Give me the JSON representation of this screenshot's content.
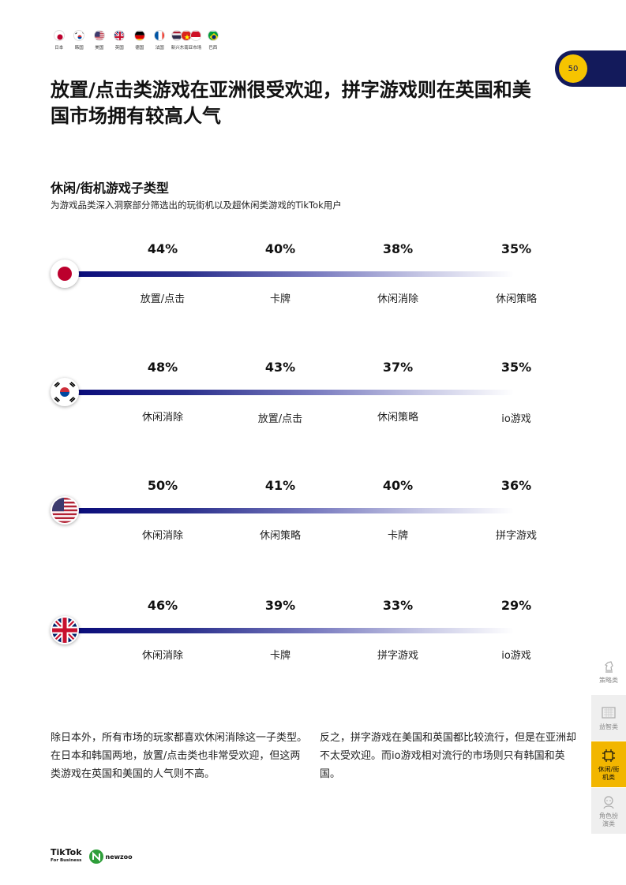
{
  "nav_flags": [
    {
      "label": "日本",
      "icon": "japan-flag-icon"
    },
    {
      "label": "韩国",
      "icon": "korea-flag-icon"
    },
    {
      "label": "美国",
      "icon": "usa-flag-icon"
    },
    {
      "label": "英国",
      "icon": "uk-flag-icon"
    },
    {
      "label": "德国",
      "icon": "germany-flag-icon"
    },
    {
      "label": "法国",
      "icon": "france-flag-icon"
    },
    {
      "label": "新兴东南亚市场",
      "icon": "sea-flags-icon"
    },
    {
      "label": "巴西",
      "icon": "brazil-flag-icon"
    }
  ],
  "page_number": "50",
  "title": "放置/点击类游戏在亚洲很受欢迎，拼字游戏则在英国和美国市场拥有较高人气",
  "section": {
    "subtitle": "休闲/街机游戏子类型",
    "description": "为游戏品类深入洞察部分筛选出的玩街机以及超休闲类游戏的TikTok用户"
  },
  "chart_data": {
    "type": "table",
    "rows": [
      {
        "market": "日本",
        "flag_icon": "japan-flag-icon",
        "items": [
          {
            "value": "44%",
            "label": "放置/点击"
          },
          {
            "value": "40%",
            "label": "卡牌"
          },
          {
            "value": "38%",
            "label": "休闲消除"
          },
          {
            "value": "35%",
            "label": "休闲策略"
          }
        ]
      },
      {
        "market": "韩国",
        "flag_icon": "korea-flag-icon",
        "items": [
          {
            "value": "48%",
            "label": "休闲消除"
          },
          {
            "value": "43%",
            "label": "放置/点击"
          },
          {
            "value": "37%",
            "label": "休闲策略"
          },
          {
            "value": "35%",
            "label": "io游戏"
          }
        ]
      },
      {
        "market": "美国",
        "flag_icon": "usa-flag-icon",
        "items": [
          {
            "value": "50%",
            "label": "休闲消除"
          },
          {
            "value": "41%",
            "label": "休闲策略"
          },
          {
            "value": "40%",
            "label": "卡牌"
          },
          {
            "value": "36%",
            "label": "拼字游戏"
          }
        ]
      },
      {
        "market": "英国",
        "flag_icon": "uk-flag-icon",
        "items": [
          {
            "value": "46%",
            "label": "休闲消除"
          },
          {
            "value": "39%",
            "label": "卡牌"
          },
          {
            "value": "33%",
            "label": "拼字游戏"
          },
          {
            "value": "29%",
            "label": "io游戏"
          }
        ]
      }
    ]
  },
  "paragraphs": [
    "除日本外，所有市场的玩家都喜欢休闲消除这一子类型。在日本和韩国两地，放置/点击类也非常受欢迎，但这两类游戏在英国和美国的人气则不高。",
    "反之，拼字游戏在美国和英国都比较流行，但是在亚洲却不太受欢迎。而io游戏相对流行的市场则只有韩国和英国。"
  ],
  "side_nav": [
    {
      "label": "策略类",
      "icon": "chess-knight-icon",
      "active": false
    },
    {
      "label": "益智类",
      "icon": "puzzle-grid-icon",
      "active": false
    },
    {
      "label": "休闲/街机类",
      "icon": "circuit-icon",
      "active": true
    },
    {
      "label": "角色扮演类",
      "icon": "character-icon",
      "active": false
    }
  ],
  "footer": {
    "tiktok_text": "TikTok",
    "tiktok_sub": "For Business",
    "newzoo_text": "newzoo"
  },
  "colors": {
    "navy": "#131a5b",
    "accent_yellow": "#f6c400",
    "bar_start": "#0a0c7a"
  }
}
